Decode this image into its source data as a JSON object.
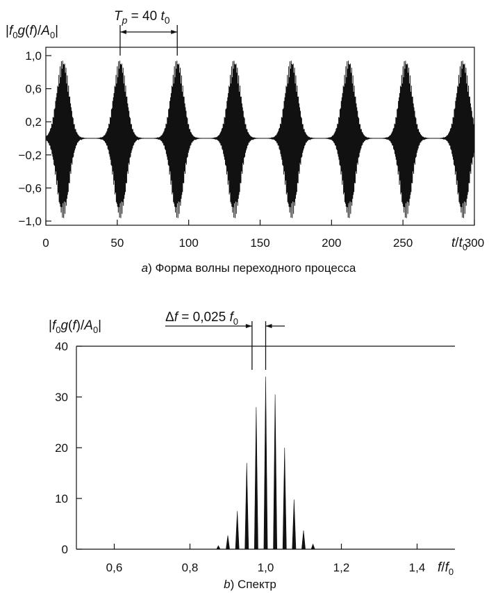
{
  "chart_data": [
    {
      "type": "line",
      "panel": "a",
      "caption_letter": "a",
      "caption": ") Форма волны переходного процесса",
      "ylabel": "|f0g(f)/A0|",
      "xlabel": "t/t0",
      "xlim": [
        0,
        300
      ],
      "ylim": [
        -1.0,
        1.0
      ],
      "xticks": [
        "0",
        "50",
        "100",
        "150",
        "200",
        "250",
        "300"
      ],
      "yticks": [
        "1,0",
        "0,6",
        "0,2",
        "−0,2",
        "−0,6",
        "−1,0"
      ],
      "annotation": "Tp = 40 t0",
      "period": 40,
      "burst_centers": [
        12,
        52,
        92,
        132,
        172,
        212,
        252,
        292
      ],
      "burst_amplitude": 0.97,
      "annotation_marks": [
        52,
        92
      ],
      "grid": false,
      "color": "#111111"
    },
    {
      "type": "bar",
      "panel": "b",
      "caption_letter": "b",
      "caption": ") Спектр",
      "ylabel": "|f0g(f)/A0|",
      "xlabel": "f/f0",
      "xlim": [
        0.5,
        1.5
      ],
      "ylim": [
        0,
        40
      ],
      "xticks": [
        "0,6",
        "0,8",
        "1,0",
        "1,2",
        "1,4"
      ],
      "yticks": [
        "40",
        "30",
        "20",
        "10",
        "0"
      ],
      "annotation": "Δf = 0,025 f0",
      "annotation_marks": [
        0.975,
        1.0
      ],
      "x": [
        0.875,
        0.9,
        0.925,
        0.95,
        0.975,
        1.0,
        1.025,
        1.05,
        1.075,
        1.1,
        1.125
      ],
      "values": [
        0.7,
        2.7,
        7.5,
        17.0,
        28.0,
        34.0,
        30.5,
        20.0,
        9.8,
        3.7,
        1.0
      ],
      "grid": false,
      "color": "#111111"
    }
  ]
}
